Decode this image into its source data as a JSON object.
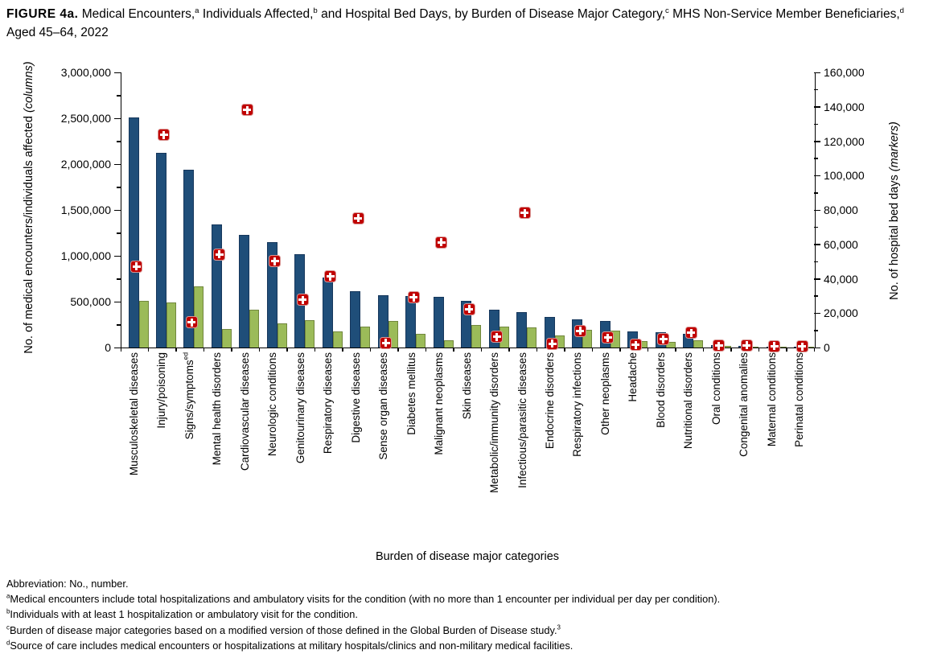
{
  "figure": {
    "title_segments": [
      {
        "text": "FIGURE 4a.",
        "bold": true
      },
      {
        "text": " Medical Encounters,"
      },
      {
        "text": "a",
        "sup": true
      },
      {
        "text": " Individuals Affected,"
      },
      {
        "text": "b",
        "sup": true
      },
      {
        "text": " and Hospital Bed Days, by Burden of Disease Major Category,"
      },
      {
        "text": "c",
        "sup": true
      },
      {
        "text": " MHS Non-Service Member Beneficiaries,"
      },
      {
        "text": "d",
        "sup": true
      },
      {
        "text": " Aged 45–64, 2022"
      }
    ]
  },
  "chart_data": {
    "type": "bar",
    "subtype": "dual-axis bar columns with square plus markers",
    "categories": [
      {
        "label": "Musculoskeletal diseases"
      },
      {
        "label": "Injury/poisoning"
      },
      {
        "label": "Signs/symptoms",
        "sup": "ed"
      },
      {
        "label": "Mental health disorders"
      },
      {
        "label": "Cardiovascular diseases"
      },
      {
        "label": "Neurologic conditions"
      },
      {
        "label": "Genitourinary diseases"
      },
      {
        "label": "Respiratory diseases"
      },
      {
        "label": "Digestive diseases"
      },
      {
        "label": "Sense organ diseases"
      },
      {
        "label": "Diabetes mellitus"
      },
      {
        "label": "Malignant neoplasms"
      },
      {
        "label": "Skin diseases"
      },
      {
        "label": "Metabolic/immunity disorders"
      },
      {
        "label": "Infectious/parasitic diseases"
      },
      {
        "label": "Endocrine disorders"
      },
      {
        "label": "Respiratory infections"
      },
      {
        "label": "Other neoplasms"
      },
      {
        "label": "Headache"
      },
      {
        "label": "Blood disorders"
      },
      {
        "label": "Nutritional disorders"
      },
      {
        "label": "Oral conditions"
      },
      {
        "label": "Congenital anomalies"
      },
      {
        "label": "Maternal conditions"
      },
      {
        "label": "Perinatal conditions"
      }
    ],
    "series": [
      {
        "name": "Medical encounters",
        "role": "bar",
        "axis": "left",
        "color": "#1F4E79",
        "border_color": "#16375C",
        "values": [
          2510000,
          2125000,
          1940000,
          1340000,
          1230000,
          1150000,
          1015000,
          760000,
          615000,
          570000,
          560000,
          555000,
          510000,
          410000,
          385000,
          335000,
          303000,
          288000,
          172000,
          168000,
          148000,
          26000,
          20000,
          6000,
          3000
        ]
      },
      {
        "name": "Individuals affected",
        "role": "bar",
        "axis": "left",
        "color": "#9BBB59",
        "border_color": "#71873D",
        "values": [
          505000,
          490000,
          665000,
          205000,
          415000,
          260000,
          300000,
          175000,
          225000,
          290000,
          150000,
          75000,
          250000,
          228000,
          218000,
          133000,
          193000,
          185000,
          68000,
          60000,
          83000,
          16000,
          9000,
          3500,
          1500
        ]
      },
      {
        "name": "Hospital bed days",
        "role": "marker",
        "axis": "right",
        "color": "#C00000",
        "values": [
          47000,
          123500,
          14500,
          54000,
          138000,
          50000,
          27500,
          41000,
          75000,
          2500,
          29000,
          61000,
          22000,
          6000,
          78000,
          2000,
          9500,
          5500,
          1200,
          4500,
          8300,
          800,
          1000,
          700,
          400
        ]
      }
    ],
    "left_axis": {
      "label_main": "No. of medical encounters/individuals affected ",
      "label_italic": "(columns)",
      "min": 0,
      "max": 3000000,
      "major_step": 500000,
      "minor_step": 250000,
      "tick_labels": [
        "0",
        "500,000",
        "1,000,000",
        "1,500,000",
        "2,000,000",
        "2,500,000",
        "3,000,000"
      ]
    },
    "right_axis": {
      "label_main": "No. of hospital bed days ",
      "label_italic": "(markers)",
      "min": 0,
      "max": 160000,
      "major_step": 20000,
      "minor_step": 10000,
      "tick_labels": [
        "0",
        "20,000",
        "40,000",
        "60,000",
        "80,000",
        "100,000",
        "120,000",
        "140,000",
        "160,000"
      ]
    },
    "x_axis": {
      "label": "Burden of disease major categories"
    },
    "grid": false,
    "legend": "none (series identified by axis labels: columns = bars, markers = red squares)"
  },
  "footnotes": [
    [
      {
        "text": "Abbreviation: No., number."
      }
    ],
    [
      {
        "text": "a",
        "sup": true
      },
      {
        "text": "Medical encounters include total hospitalizations and ambulatory visits for the condition (with no more than 1 encounter per individual per day per condition)."
      }
    ],
    [
      {
        "text": "b",
        "sup": true
      },
      {
        "text": "Individuals with at least 1 hospitalization or ambulatory visit for the condition."
      }
    ],
    [
      {
        "text": "c",
        "sup": true
      },
      {
        "text": "Burden of disease major categories based on a modified version of those defined in the Global Burden of Disease study."
      },
      {
        "text": "3",
        "sup": true
      }
    ],
    [
      {
        "text": "d",
        "sup": true
      },
      {
        "text": "Source of care includes medical encounters or hospitalizations at military hospitals/clinics and non-military medical facilities."
      }
    ]
  ]
}
